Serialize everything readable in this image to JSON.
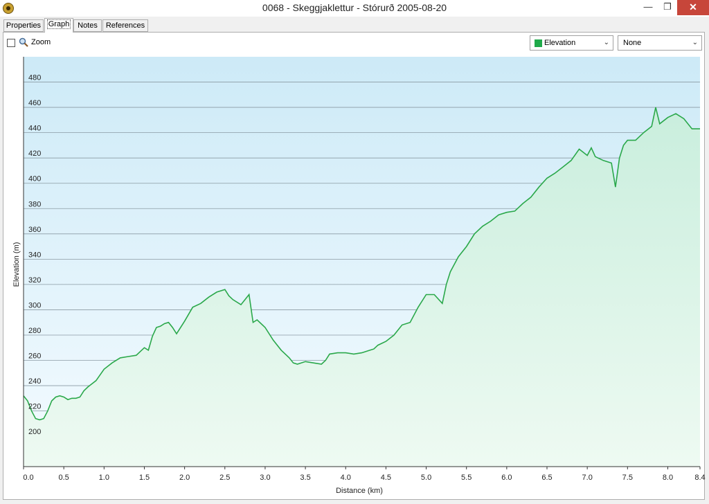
{
  "window": {
    "title": "0068 - Skeggjaklettur - Stórurð 2005-08-20",
    "app_icon": "compass-app-icon",
    "controls": [
      "minimize-icon",
      "restore-icon",
      "close-icon"
    ]
  },
  "tabs": [
    {
      "label": "Properties",
      "active": false
    },
    {
      "label": "Graph",
      "active": true
    },
    {
      "label": "Notes",
      "active": false
    },
    {
      "label": "References",
      "active": false
    }
  ],
  "toolbar": {
    "zoom_label": "Zoom",
    "zoom_checked": false,
    "primary_select": {
      "value": "Elevation",
      "swatch_color": "#1faa4a"
    },
    "secondary_select": {
      "value": "None"
    }
  },
  "chart_data": {
    "type": "area",
    "xlabel": "Distance  (km)",
    "ylabel": "Elevation (m)",
    "xlim": [
      0,
      8.4
    ],
    "ylim": [
      176,
      500
    ],
    "x_ticks": [
      "0.0",
      "0.5",
      "1.0",
      "1.5",
      "2.0",
      "2.5",
      "3.0",
      "3.5",
      "4.0",
      "4.5",
      "5.0",
      "5.5",
      "6.0",
      "6.5",
      "7.0",
      "7.5",
      "8.0",
      "8.4"
    ],
    "y_ticks": [
      "200",
      "220",
      "240",
      "260",
      "280",
      "300",
      "320",
      "340",
      "360",
      "380",
      "400",
      "420",
      "440",
      "460",
      "480"
    ],
    "grid": true,
    "line_color": "#2aa84a",
    "series": [
      {
        "x": [
          0.0,
          0.05,
          0.1,
          0.15,
          0.2,
          0.25,
          0.3,
          0.35,
          0.4,
          0.45,
          0.5,
          0.55,
          0.6,
          0.65,
          0.7,
          0.75,
          0.8,
          0.9,
          1.0,
          1.1,
          1.2,
          1.3,
          1.4,
          1.5,
          1.55,
          1.6,
          1.65,
          1.7,
          1.75,
          1.8,
          1.85,
          1.9,
          2.0,
          2.1,
          2.2,
          2.3,
          2.4,
          2.5,
          2.55,
          2.6,
          2.7,
          2.8,
          2.85,
          2.9,
          3.0,
          3.1,
          3.2,
          3.3,
          3.35,
          3.4,
          3.5,
          3.6,
          3.7,
          3.75,
          3.8,
          3.9,
          4.0,
          4.1,
          4.2,
          4.3,
          4.35,
          4.4,
          4.5,
          4.6,
          4.7,
          4.8,
          4.9,
          5.0,
          5.1,
          5.2,
          5.25,
          5.3,
          5.4,
          5.5,
          5.6,
          5.7,
          5.8,
          5.9,
          6.0,
          6.1,
          6.2,
          6.3,
          6.4,
          6.5,
          6.6,
          6.7,
          6.8,
          6.9,
          7.0,
          7.05,
          7.1,
          7.2,
          7.3,
          7.35,
          7.4,
          7.45,
          7.5,
          7.6,
          7.7,
          7.8,
          7.85,
          7.9,
          8.0,
          8.1,
          8.2,
          8.3,
          8.4
        ],
        "y": [
          232,
          228,
          220,
          214,
          213,
          214,
          220,
          228,
          231,
          232,
          231,
          229,
          230,
          230,
          231,
          236,
          239,
          244,
          253,
          258,
          262,
          263,
          264,
          270,
          268,
          279,
          286,
          287,
          289,
          290,
          286,
          281,
          291,
          302,
          305,
          310,
          314,
          316,
          311,
          308,
          304,
          312,
          290,
          292,
          286,
          276,
          268,
          262,
          258,
          257,
          259,
          258,
          257,
          260,
          265,
          266,
          266,
          265,
          266,
          268,
          269,
          272,
          275,
          280,
          288,
          290,
          302,
          312,
          312,
          305,
          320,
          330,
          342,
          350,
          360,
          366,
          370,
          375,
          377,
          378,
          384,
          389,
          397,
          404,
          408,
          413,
          418,
          427,
          422,
          428,
          421,
          418,
          416,
          397,
          420,
          430,
          434,
          434,
          440,
          445,
          460,
          447,
          452,
          455,
          451,
          443,
          443
        ]
      }
    ]
  }
}
